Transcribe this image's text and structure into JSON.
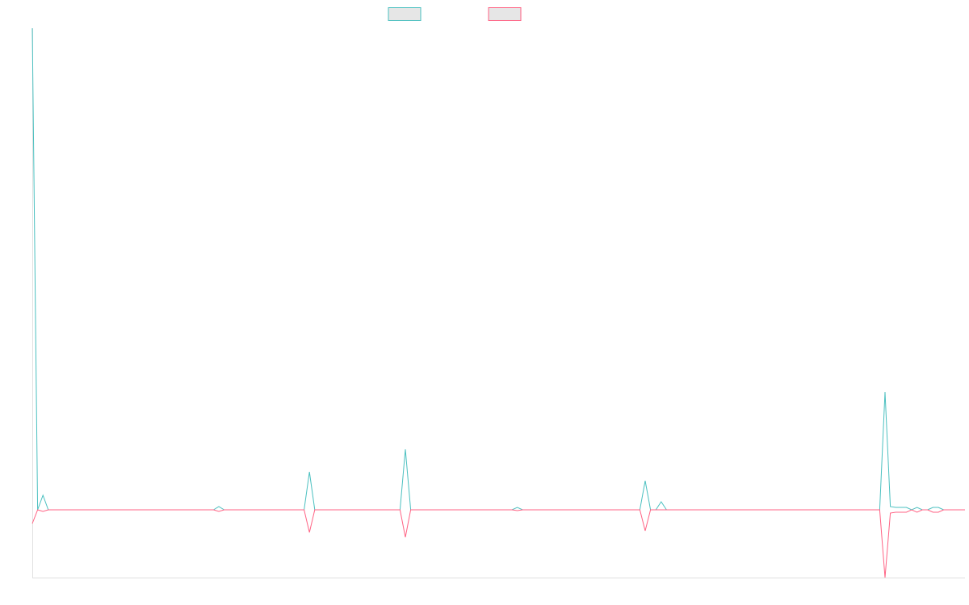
{
  "chart_data": {
    "type": "line",
    "categories": [
      null,
      null,
      null,
      null,
      null,
      null,
      null,
      null,
      null,
      null,
      null,
      null,
      null,
      null,
      null,
      null,
      null,
      null,
      null,
      null,
      null,
      null,
      null,
      null,
      null,
      null,
      null,
      null,
      null,
      null,
      null,
      null,
      null,
      null,
      null,
      null,
      null,
      null,
      null,
      null,
      null,
      null,
      null,
      null,
      null,
      null,
      null,
      null,
      null,
      null,
      null,
      null,
      null,
      null,
      null,
      null,
      null,
      null,
      null,
      null,
      null,
      null,
      null,
      null,
      null,
      null,
      null,
      null,
      null,
      null,
      null,
      null,
      null,
      null,
      null,
      null,
      null,
      null,
      null,
      null,
      null,
      null,
      null,
      null,
      null,
      null,
      null,
      null,
      null,
      null,
      null,
      null,
      null,
      null,
      null,
      null,
      null,
      null,
      null,
      null,
      null,
      null,
      null,
      null,
      null,
      null,
      null,
      null,
      null,
      null,
      null,
      null,
      null,
      null,
      null,
      null,
      null,
      null,
      null,
      null,
      null,
      null,
      null,
      null,
      null,
      null,
      null,
      null,
      null,
      null,
      null,
      null,
      null,
      null,
      null,
      null,
      null,
      null,
      null,
      null,
      null,
      null,
      null,
      null,
      null,
      null,
      null,
      null,
      null,
      null,
      null,
      null,
      null,
      null,
      null,
      null,
      null,
      null,
      null,
      null,
      null,
      null,
      null,
      null,
      null,
      null,
      null,
      null,
      null,
      null,
      null,
      null,
      null,
      null,
      null,
      null
    ],
    "series": [
      {
        "color": "#4bc0c0",
        "values": [
          597,
          0,
          18,
          0,
          0,
          0,
          0,
          0,
          0,
          0,
          0,
          0,
          0,
          0,
          0,
          0,
          0,
          0,
          0,
          0,
          0,
          0,
          0,
          0,
          0,
          0,
          0,
          0,
          0,
          0,
          0,
          0,
          0,
          0,
          0,
          4,
          0,
          0,
          0,
          0,
          0,
          0,
          0,
          0,
          0,
          0,
          0,
          0,
          0,
          0,
          0,
          0,
          47,
          0,
          0,
          0,
          0,
          0,
          0,
          0,
          0,
          0,
          0,
          0,
          0,
          0,
          0,
          0,
          0,
          0,
          75,
          0,
          0,
          0,
          0,
          0,
          0,
          0,
          0,
          0,
          0,
          0,
          0,
          0,
          0,
          0,
          0,
          0,
          0,
          0,
          0,
          3,
          0,
          0,
          0,
          0,
          0,
          0,
          0,
          0,
          0,
          0,
          0,
          0,
          0,
          0,
          0,
          0,
          0,
          0,
          0,
          0,
          0,
          0,
          0,
          36,
          0,
          0,
          10,
          0,
          0,
          0,
          0,
          0,
          0,
          0,
          0,
          0,
          0,
          0,
          0,
          0,
          0,
          0,
          0,
          0,
          0,
          0,
          0,
          0,
          0,
          0,
          0,
          0,
          0,
          0,
          0,
          0,
          0,
          0,
          0,
          0,
          0,
          0,
          0,
          0,
          0,
          0,
          0,
          0,
          146,
          4,
          3,
          3,
          3,
          0,
          3,
          0,
          0,
          3,
          3,
          0,
          0,
          0,
          0,
          0
        ]
      },
      {
        "color": "#ff6384",
        "values": [
          -17,
          0,
          -2,
          0,
          0,
          0,
          0,
          0,
          0,
          0,
          0,
          0,
          0,
          0,
          0,
          0,
          0,
          0,
          0,
          0,
          0,
          0,
          0,
          0,
          0,
          0,
          0,
          0,
          0,
          0,
          0,
          0,
          0,
          0,
          0,
          -2,
          0,
          0,
          0,
          0,
          0,
          0,
          0,
          0,
          0,
          0,
          0,
          0,
          0,
          0,
          0,
          0,
          -28,
          0,
          0,
          0,
          0,
          0,
          0,
          0,
          0,
          0,
          0,
          0,
          0,
          0,
          0,
          0,
          0,
          0,
          -34,
          0,
          0,
          0,
          0,
          0,
          0,
          0,
          0,
          0,
          0,
          0,
          0,
          0,
          0,
          0,
          0,
          0,
          0,
          0,
          0,
          -1,
          0,
          0,
          0,
          0,
          0,
          0,
          0,
          0,
          0,
          0,
          0,
          0,
          0,
          0,
          0,
          0,
          0,
          0,
          0,
          0,
          0,
          0,
          0,
          -26,
          0,
          0,
          0,
          0,
          0,
          0,
          0,
          0,
          0,
          0,
          0,
          0,
          0,
          0,
          0,
          0,
          0,
          0,
          0,
          0,
          0,
          0,
          0,
          0,
          0,
          0,
          0,
          0,
          0,
          0,
          0,
          0,
          0,
          0,
          0,
          0,
          0,
          0,
          0,
          0,
          0,
          0,
          0,
          0,
          -84,
          -4,
          -3,
          -3,
          -3,
          0,
          -3,
          0,
          0,
          -3,
          -3,
          0,
          0,
          0,
          0,
          0
        ]
      }
    ],
    "ylim": [
      -84,
      597
    ]
  }
}
